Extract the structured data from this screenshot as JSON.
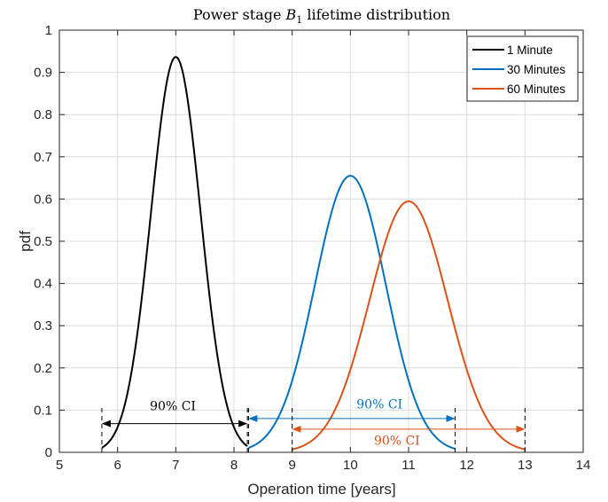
{
  "chart_data": {
    "type": "line",
    "title": "Power stage B1 lifetime distribution",
    "title_parts": {
      "prefix": "Power stage ",
      "symbol": "B",
      "subscript": "1",
      "suffix": " lifetime distribution"
    },
    "xlabel": "Operation time [years]",
    "ylabel": "pdf",
    "xlim": [
      5,
      14
    ],
    "ylim": [
      0,
      1
    ],
    "xticks": [
      5,
      6,
      7,
      8,
      9,
      10,
      11,
      12,
      13,
      14
    ],
    "xtick_labels": [
      "5",
      "6",
      "7",
      "8",
      "9",
      "10",
      "11",
      "12",
      "13",
      "14"
    ],
    "yticks": [
      0,
      0.1,
      0.2,
      0.3,
      0.4,
      0.5,
      0.6,
      0.7,
      0.8,
      0.9,
      1
    ],
    "ytick_labels": [
      "0",
      "0.1",
      "0.2",
      "0.3",
      "0.4",
      "0.5",
      "0.6",
      "0.7",
      "0.8",
      "0.9",
      "1"
    ],
    "grid": true,
    "legend_position": "top-right",
    "series": [
      {
        "name": "1 Minute",
        "color": "#000000",
        "mean": 7.0,
        "sd": 0.426,
        "x_start": 5.73,
        "x_end": 8.23
      },
      {
        "name": "30 Minutes",
        "color": "#0072BD",
        "mean": 10.0,
        "sd": 0.609,
        "x_start": 8.25,
        "x_end": 11.8
      },
      {
        "name": "60 Minutes",
        "color": "#D95319",
        "mean": 11.0,
        "sd": 0.671,
        "x_start": 9.0,
        "x_end": 13.0
      }
    ],
    "annotations": [
      {
        "text": "90% CI",
        "color": "#000000",
        "x_from": 5.73,
        "x_to": 8.23,
        "arrow_y": 0.068,
        "label_x": 6.95,
        "label_y": 0.11,
        "markers": [
          5.73,
          8.23
        ]
      },
      {
        "text": "90% CI",
        "color": "#0072BD",
        "x_from": 8.25,
        "x_to": 11.8,
        "arrow_y": 0.08,
        "label_x": 10.5,
        "label_y": 0.115,
        "markers": [
          8.25,
          11.8
        ]
      },
      {
        "text": "90% CI",
        "color": "#D95319",
        "x_from": 9.0,
        "x_to": 13.0,
        "arrow_y": 0.055,
        "label_x": 10.8,
        "label_y": 0.028,
        "markers": [
          9.0,
          13.0
        ]
      }
    ]
  }
}
